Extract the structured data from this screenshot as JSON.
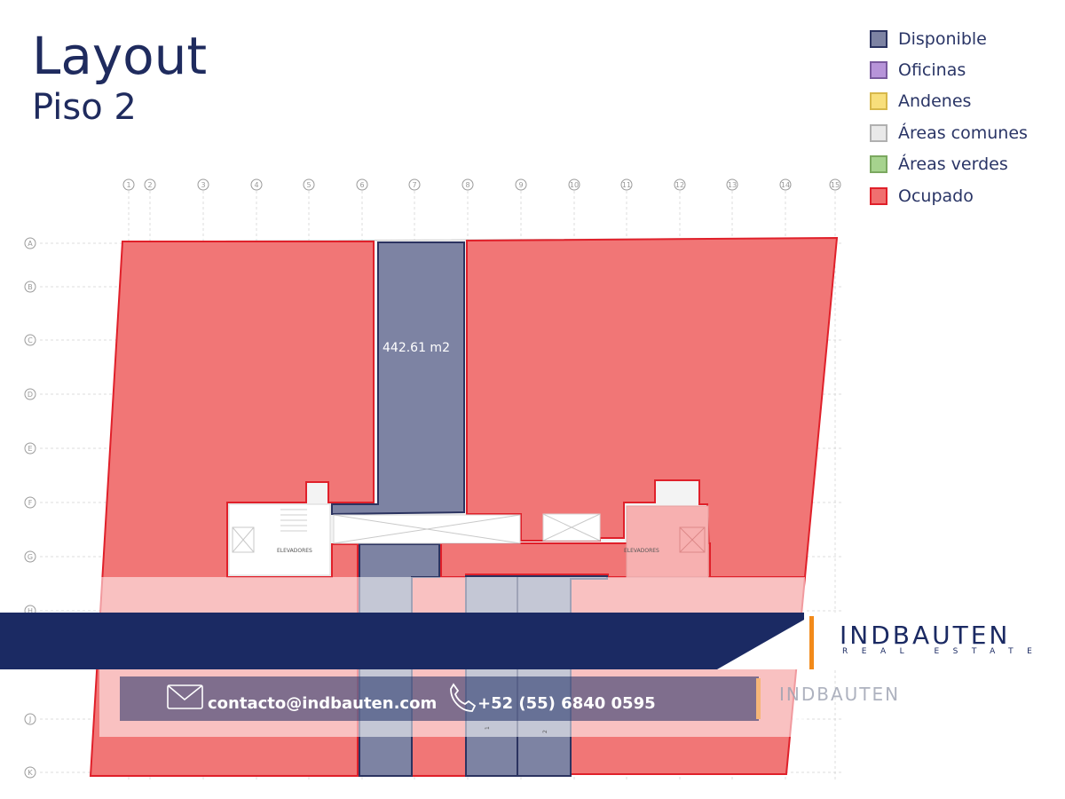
{
  "title": {
    "main": "Layout",
    "sub": "Piso 2"
  },
  "legend": [
    {
      "label": "Disponible",
      "fill": "#7d83a3",
      "border": "#2b3360"
    },
    {
      "label": "Oficinas",
      "fill": "#b794d9",
      "border": "#7a5a9e"
    },
    {
      "label": "Andenes",
      "fill": "#f8df7b",
      "border": "#d7b84a"
    },
    {
      "label": "Áreas comunes",
      "fill": "#e9e9e9",
      "border": "#b0b0b0"
    },
    {
      "label": "Áreas verdes",
      "fill": "#a6d38e",
      "border": "#7ba860"
    },
    {
      "label": "Ocupado",
      "fill": "#f06f6f",
      "border": "#e0202a"
    }
  ],
  "grid": {
    "columns": [
      "1",
      "2",
      "3",
      "4",
      "5",
      "6",
      "7",
      "8",
      "9",
      "10",
      "11",
      "12",
      "13",
      "14",
      "15"
    ],
    "rows": [
      "A",
      "B",
      "C",
      "D",
      "E",
      "F",
      "G",
      "H",
      "J",
      "K"
    ]
  },
  "areas": {
    "available_label": "442.61 m2"
  },
  "rooms": {
    "elevators_left": "ELEVADORES",
    "elevators_right": "ELEVADORES",
    "unit_1": "1",
    "unit_2": "2"
  },
  "contact": {
    "email": "contacto@indbauten.com",
    "phone": "+52 (55) 6840 0595"
  },
  "brand": {
    "name": "INDBAUTEN",
    "tagline": "REAL ESTATE"
  },
  "colors": {
    "occupied": "#f06f6f",
    "occupied_border": "#e0202a",
    "available": "#7d83a3",
    "available_border": "#2b3360",
    "common": "#e9e9e9",
    "banner": "#1b2a63",
    "accent": "#f28a1a"
  }
}
